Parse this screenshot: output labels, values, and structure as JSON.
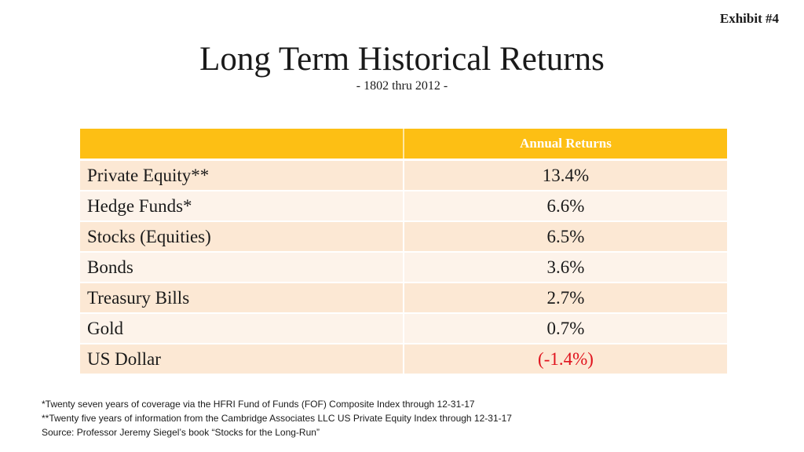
{
  "exhibit": "Exhibit #4",
  "title": "Long Term Historical Returns",
  "subtitle": "- 1802 thru 2012 -",
  "table": {
    "header": [
      "",
      "Annual Returns"
    ],
    "rows": [
      {
        "label": "Private Equity**",
        "value": "13.4%"
      },
      {
        "label": "Hedge Funds*",
        "value": "6.6%"
      },
      {
        "label": "Stocks (Equities)",
        "value": "6.5%"
      },
      {
        "label": "Bonds",
        "value": "3.6%"
      },
      {
        "label": "Treasury Bills",
        "value": "2.7%"
      },
      {
        "label": "Gold",
        "value": "0.7%"
      },
      {
        "label": "US Dollar",
        "value": "(-1.4%)"
      }
    ]
  },
  "footnotes": [
    "*Twenty seven years of coverage via the HFRI Fund of Funds (FOF) Composite Index through 12-31-17",
    "**Twenty five years of information from the Cambridge Associates LLC US Private Equity Index through 12-31-17",
    "Source: Professor Jeremy Siegel’s book “Stocks for the Long-Run”"
  ],
  "colors": {
    "header_bg": "#fdbf14",
    "row_even": "#fce8d4",
    "row_odd": "#fdf3ea",
    "negative": "#e0141e"
  }
}
